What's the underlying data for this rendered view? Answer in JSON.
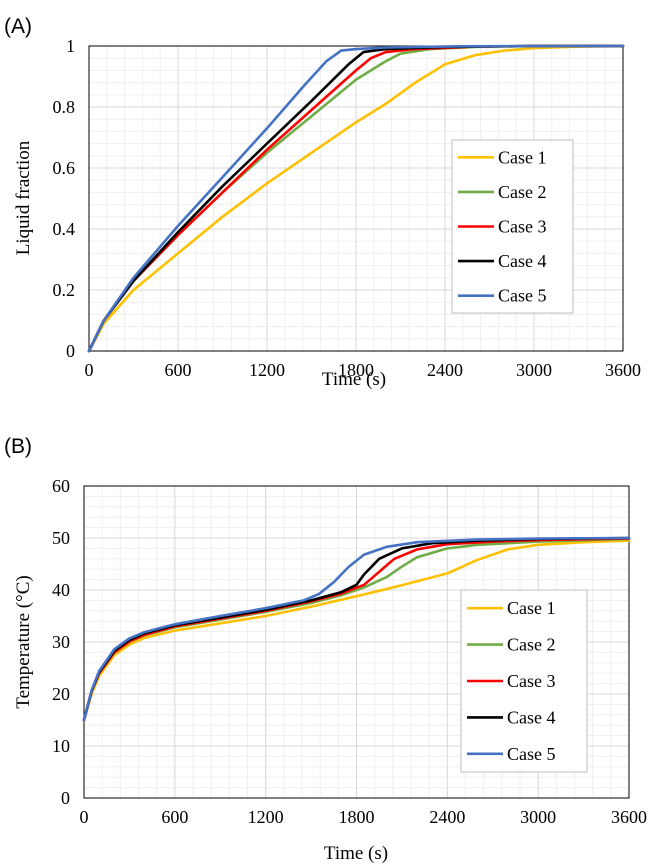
{
  "panels": [
    {
      "label": "(A)",
      "ylabel": "Liquid fraction",
      "xlabel": "Time (s)"
    },
    {
      "label": "(B)",
      "ylabel": "Temperature (°C)",
      "xlabel": "Time (s)"
    }
  ],
  "colors": {
    "Case 1": "#FFC000",
    "Case 2": "#70AD47",
    "Case 3": "#FF0000",
    "Case 4": "#000000",
    "Case 5": "#4472C4"
  },
  "chart_data": [
    {
      "type": "line",
      "title": "",
      "xlabel": "Time (s)",
      "ylabel": "Liquid fraction",
      "xlim": [
        0,
        3600
      ],
      "ylim": [
        0,
        1
      ],
      "xticks": [
        0,
        600,
        1200,
        1800,
        2400,
        3000,
        3600
      ],
      "yticks": [
        0,
        0.2,
        0.4,
        0.6,
        0.8,
        1
      ],
      "ytick_labels": [
        "0",
        "0.2",
        "0.4",
        "0.6",
        "0.8",
        "1"
      ],
      "grid": true,
      "legend_position": "right",
      "series": [
        {
          "name": "Case 1",
          "color": "#FFC000",
          "points": [
            [
              0,
              0
            ],
            [
              100,
              0.09
            ],
            [
              300,
              0.2
            ],
            [
              600,
              0.32
            ],
            [
              900,
              0.44
            ],
            [
              1200,
              0.55
            ],
            [
              1500,
              0.65
            ],
            [
              1800,
              0.75
            ],
            [
              2000,
              0.81
            ],
            [
              2200,
              0.88
            ],
            [
              2400,
              0.94
            ],
            [
              2600,
              0.97
            ],
            [
              2800,
              0.985
            ],
            [
              3000,
              0.993
            ],
            [
              3300,
              0.998
            ],
            [
              3600,
              1.0
            ]
          ]
        },
        {
          "name": "Case 2",
          "color": "#70AD47",
          "points": [
            [
              0,
              0
            ],
            [
              100,
              0.1
            ],
            [
              300,
              0.23
            ],
            [
              600,
              0.38
            ],
            [
              900,
              0.52
            ],
            [
              1200,
              0.65
            ],
            [
              1500,
              0.77
            ],
            [
              1800,
              0.89
            ],
            [
              2000,
              0.95
            ],
            [
              2100,
              0.975
            ],
            [
              2300,
              0.99
            ],
            [
              2600,
              0.997
            ],
            [
              3000,
              1.0
            ],
            [
              3600,
              1.0
            ]
          ]
        },
        {
          "name": "Case 3",
          "color": "#FF0000",
          "points": [
            [
              0,
              0
            ],
            [
              100,
              0.1
            ],
            [
              300,
              0.23
            ],
            [
              600,
              0.38
            ],
            [
              900,
              0.52
            ],
            [
              1200,
              0.66
            ],
            [
              1500,
              0.79
            ],
            [
              1800,
              0.92
            ],
            [
              1900,
              0.96
            ],
            [
              2000,
              0.98
            ],
            [
              2200,
              0.99
            ],
            [
              2600,
              0.998
            ],
            [
              3000,
              1.0
            ],
            [
              3600,
              1.0
            ]
          ]
        },
        {
          "name": "Case 4",
          "color": "#000000",
          "points": [
            [
              0,
              0
            ],
            [
              100,
              0.1
            ],
            [
              300,
              0.23
            ],
            [
              600,
              0.39
            ],
            [
              900,
              0.54
            ],
            [
              1200,
              0.68
            ],
            [
              1500,
              0.82
            ],
            [
              1750,
              0.94
            ],
            [
              1850,
              0.98
            ],
            [
              2000,
              0.99
            ],
            [
              2400,
              0.997
            ],
            [
              3000,
              1.0
            ],
            [
              3600,
              1.0
            ]
          ]
        },
        {
          "name": "Case 5",
          "color": "#4472C4",
          "points": [
            [
              0,
              0
            ],
            [
              100,
              0.1
            ],
            [
              300,
              0.24
            ],
            [
              600,
              0.41
            ],
            [
              900,
              0.57
            ],
            [
              1200,
              0.73
            ],
            [
              1450,
              0.87
            ],
            [
              1600,
              0.95
            ],
            [
              1700,
              0.985
            ],
            [
              1800,
              0.99
            ],
            [
              2000,
              0.995
            ],
            [
              2500,
              0.999
            ],
            [
              3600,
              1.0
            ]
          ]
        }
      ]
    },
    {
      "type": "line",
      "title": "",
      "xlabel": "Time (s)",
      "ylabel": "Temperature (°C)",
      "xlim": [
        0,
        3600
      ],
      "ylim": [
        0,
        60
      ],
      "xticks": [
        0,
        600,
        1200,
        1800,
        2400,
        3000,
        3600
      ],
      "yticks": [
        0,
        10,
        20,
        30,
        40,
        50,
        60
      ],
      "ytick_labels": [
        "0",
        "10",
        "20",
        "30",
        "40",
        "50",
        "60"
      ],
      "grid": true,
      "legend_position": "right",
      "series": [
        {
          "name": "Case 1",
          "color": "#FFC000",
          "points": [
            [
              0,
              15
            ],
            [
              50,
              20
            ],
            [
              100,
              23.5
            ],
            [
              200,
              27.5
            ],
            [
              300,
              29.5
            ],
            [
              400,
              30.8
            ],
            [
              600,
              32.2
            ],
            [
              900,
              33.6
            ],
            [
              1200,
              35
            ],
            [
              1500,
              36.8
            ],
            [
              1800,
              38.8
            ],
            [
              2000,
              40.2
            ],
            [
              2200,
              41.7
            ],
            [
              2400,
              43.2
            ],
            [
              2600,
              45.8
            ],
            [
              2800,
              47.8
            ],
            [
              3000,
              48.7
            ],
            [
              3300,
              49.2
            ],
            [
              3600,
              49.5
            ]
          ]
        },
        {
          "name": "Case 2",
          "color": "#70AD47",
          "points": [
            [
              0,
              15
            ],
            [
              50,
              20.5
            ],
            [
              100,
              24
            ],
            [
              200,
              28
            ],
            [
              300,
              30
            ],
            [
              400,
              31.3
            ],
            [
              600,
              32.8
            ],
            [
              900,
              34.3
            ],
            [
              1200,
              35.8
            ],
            [
              1500,
              37.5
            ],
            [
              1700,
              39
            ],
            [
              1850,
              40.5
            ],
            [
              2000,
              42.5
            ],
            [
              2100,
              44.5
            ],
            [
              2200,
              46.3
            ],
            [
              2400,
              48
            ],
            [
              2600,
              48.7
            ],
            [
              3000,
              49.3
            ],
            [
              3600,
              49.8
            ]
          ]
        },
        {
          "name": "Case 3",
          "color": "#FF0000",
          "points": [
            [
              0,
              15
            ],
            [
              50,
              20.5
            ],
            [
              100,
              24
            ],
            [
              200,
              28
            ],
            [
              300,
              30.1
            ],
            [
              400,
              31.4
            ],
            [
              600,
              33
            ],
            [
              900,
              34.5
            ],
            [
              1200,
              36
            ],
            [
              1500,
              37.8
            ],
            [
              1700,
              39.3
            ],
            [
              1850,
              41
            ],
            [
              1950,
              43.5
            ],
            [
              2050,
              46
            ],
            [
              2200,
              47.8
            ],
            [
              2400,
              48.8
            ],
            [
              2700,
              49.3
            ],
            [
              3000,
              49.6
            ],
            [
              3600,
              49.9
            ]
          ]
        },
        {
          "name": "Case 4",
          "color": "#000000",
          "points": [
            [
              0,
              15
            ],
            [
              50,
              20.6
            ],
            [
              100,
              24.2
            ],
            [
              200,
              28.3
            ],
            [
              300,
              30.4
            ],
            [
              400,
              31.7
            ],
            [
              600,
              33.2
            ],
            [
              900,
              34.7
            ],
            [
              1200,
              36.2
            ],
            [
              1500,
              38
            ],
            [
              1700,
              39.6
            ],
            [
              1800,
              41
            ],
            [
              1850,
              43
            ],
            [
              1950,
              46
            ],
            [
              2100,
              48
            ],
            [
              2300,
              49
            ],
            [
              2600,
              49.5
            ],
            [
              3000,
              49.8
            ],
            [
              3600,
              50
            ]
          ]
        },
        {
          "name": "Case 5",
          "color": "#4472C4",
          "points": [
            [
              0,
              15
            ],
            [
              50,
              20.7
            ],
            [
              100,
              24.4
            ],
            [
              200,
              28.6
            ],
            [
              300,
              30.7
            ],
            [
              400,
              31.9
            ],
            [
              600,
              33.4
            ],
            [
              900,
              35
            ],
            [
              1200,
              36.5
            ],
            [
              1450,
              38
            ],
            [
              1550,
              39.2
            ],
            [
              1650,
              41.5
            ],
            [
              1750,
              44.5
            ],
            [
              1850,
              46.8
            ],
            [
              2000,
              48.3
            ],
            [
              2200,
              49.2
            ],
            [
              2600,
              49.7
            ],
            [
              3000,
              49.9
            ],
            [
              3600,
              50
            ]
          ]
        }
      ]
    }
  ]
}
